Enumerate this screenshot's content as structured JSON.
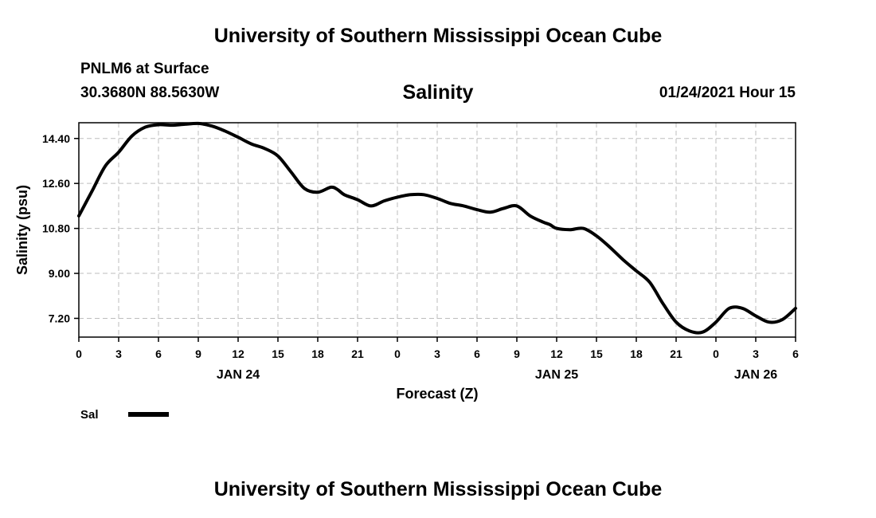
{
  "header_title": "University of Southern Mississippi Ocean Cube",
  "footer_title": "University of Southern Mississippi Ocean Cube",
  "station": {
    "name": "PNLM6 at Surface",
    "coords": "30.3680N 88.5630W"
  },
  "timestamp": "01/24/2021 Hour 15",
  "chart_data": {
    "type": "line",
    "title": "Salinity",
    "xlabel": "Forecast (Z)",
    "ylabel": "Salinity (psu)",
    "ylim": [
      6.45,
      15.03
    ],
    "xlim": [
      0,
      54
    ],
    "y_ticks": [
      "14.40",
      "12.60",
      "10.80",
      "9.00",
      "7.20"
    ],
    "x_ticks": [
      "0",
      "3",
      "6",
      "9",
      "12",
      "15",
      "18",
      "21",
      "0",
      "3",
      "6",
      "9",
      "12",
      "15",
      "18",
      "21",
      "0",
      "3",
      "6"
    ],
    "date_labels": [
      {
        "label": "JAN 24",
        "hour": 12
      },
      {
        "label": "JAN 25",
        "hour": 36
      },
      {
        "label": "JAN 26",
        "hour": 51
      }
    ],
    "grid": true,
    "legend": {
      "label": "Sal",
      "placement": "bottom-left"
    },
    "series": [
      {
        "name": "Sal",
        "x": [
          0,
          1,
          2,
          3,
          4,
          5,
          6,
          7,
          8,
          9,
          10,
          11,
          12,
          13,
          14,
          15,
          16,
          17,
          18,
          19,
          19.5,
          20,
          21,
          22,
          23,
          24,
          25,
          26,
          27,
          28,
          29,
          30,
          31,
          32,
          33,
          34,
          35,
          35.5,
          36,
          37,
          38,
          39,
          40,
          41,
          42,
          43,
          44,
          45,
          46,
          47,
          48,
          49,
          50,
          51,
          52,
          53,
          54
        ],
        "y": [
          11.3,
          12.3,
          13.3,
          13.85,
          14.5,
          14.85,
          14.95,
          14.93,
          14.97,
          15.0,
          14.9,
          14.7,
          14.45,
          14.18,
          14.0,
          13.7,
          13.05,
          12.4,
          12.25,
          12.45,
          12.35,
          12.15,
          11.95,
          11.7,
          11.9,
          12.05,
          12.15,
          12.15,
          12.0,
          11.8,
          11.7,
          11.55,
          11.45,
          11.6,
          11.7,
          11.3,
          11.05,
          10.95,
          10.8,
          10.75,
          10.8,
          10.5,
          10.05,
          9.55,
          9.1,
          8.65,
          7.8,
          7.05,
          6.7,
          6.65,
          7.05,
          7.6,
          7.6,
          7.3,
          7.05,
          7.15,
          7.6
        ]
      }
    ]
  }
}
